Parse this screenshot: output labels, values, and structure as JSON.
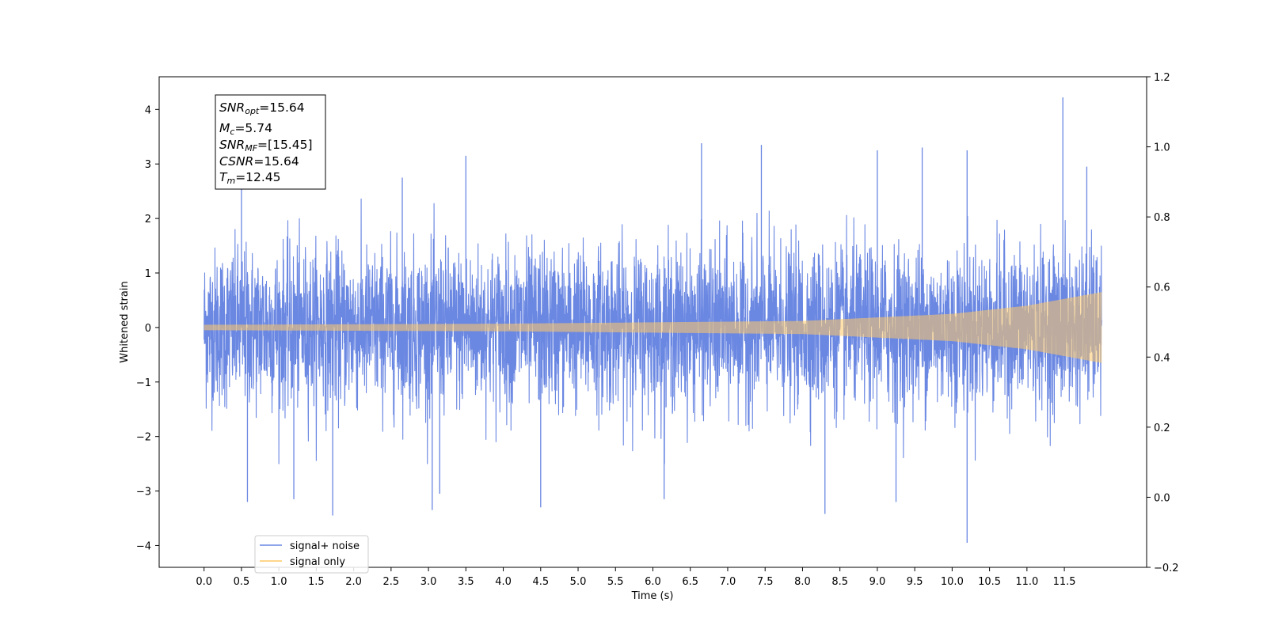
{
  "chart_data": {
    "type": "line",
    "title": "",
    "xlabel": "Time (s)",
    "ylabel": "Whitened strain",
    "xlim": [
      -0.6,
      12.6
    ],
    "ylim": [
      -4.4,
      4.6
    ],
    "y2lim": [
      -0.2,
      1.2
    ],
    "x_ticks": [
      "0.0",
      "0.5",
      "1.0",
      "1.5",
      "2.0",
      "2.5",
      "3.0",
      "3.5",
      "4.0",
      "4.5",
      "5.0",
      "5.5",
      "6.0",
      "6.5",
      "7.0",
      "7.5",
      "8.0",
      "8.5",
      "9.0",
      "9.5",
      "10.0",
      "10.5",
      "11.0",
      "11.5"
    ],
    "y_ticks": [
      "−4",
      "−3",
      "−2",
      "−1",
      "0",
      "1",
      "2",
      "3",
      "4"
    ],
    "y2_ticks": [
      "−0.2",
      "0.0",
      "0.2",
      "0.4",
      "0.6",
      "0.8",
      "1.0",
      "1.2"
    ],
    "grid": false,
    "legend": {
      "placement": "lower-left",
      "entries": [
        {
          "label": "signal+ noise",
          "color": "#6a87e2"
        },
        {
          "label": "signal only",
          "color": "#ffc966"
        }
      ]
    },
    "series": [
      {
        "name": "signal+ noise",
        "color": "#6a87e2",
        "x_range": [
          0.0,
          12.0
        ],
        "envelope_typical": [
          -2.0,
          2.0
        ],
        "peaks": [
          {
            "x": 11.48,
            "y": 4.22
          },
          {
            "x": 10.2,
            "y": -3.95
          },
          {
            "x": 1.72,
            "y": -3.45
          },
          {
            "x": 6.65,
            "y": 3.38
          },
          {
            "x": 7.45,
            "y": 3.35
          },
          {
            "x": 8.3,
            "y": -3.42
          },
          {
            "x": 3.05,
            "y": -3.35
          },
          {
            "x": 4.5,
            "y": -3.3
          },
          {
            "x": 9.6,
            "y": 3.3
          },
          {
            "x": 10.2,
            "y": 3.25
          },
          {
            "x": 0.58,
            "y": -3.2
          },
          {
            "x": 1.2,
            "y": -3.15
          },
          {
            "x": 3.5,
            "y": 3.15
          },
          {
            "x": 6.15,
            "y": -3.15
          },
          {
            "x": 9.0,
            "y": 3.25
          },
          {
            "x": 9.25,
            "y": -3.2
          },
          {
            "x": 2.65,
            "y": 2.75
          },
          {
            "x": 3.15,
            "y": -3.05
          },
          {
            "x": 0.5,
            "y": 2.9
          },
          {
            "x": 11.8,
            "y": 2.95
          }
        ]
      },
      {
        "name": "signal only",
        "color": "#ffc966",
        "x_range": [
          0.0,
          12.0
        ],
        "amplitude_points": [
          [
            0.0,
            0.05
          ],
          [
            4.0,
            0.07
          ],
          [
            8.0,
            0.12
          ],
          [
            10.0,
            0.25
          ],
          [
            11.0,
            0.4
          ],
          [
            12.0,
            0.65
          ]
        ]
      }
    ]
  },
  "stats_box": {
    "snr_opt": {
      "base": "SNR",
      "sub": "opt",
      "value": "=15.64"
    },
    "m_c": {
      "base": "M",
      "sub": "c",
      "value": "=5.74"
    },
    "snr_mf": {
      "base": "SNR",
      "sub": "MF",
      "value": "=[15.45]"
    },
    "csnr": {
      "base": "CSNR",
      "sub": "",
      "value": "=15.64"
    },
    "t_m": {
      "base": "T",
      "sub": "m",
      "value": "=12.45"
    }
  }
}
